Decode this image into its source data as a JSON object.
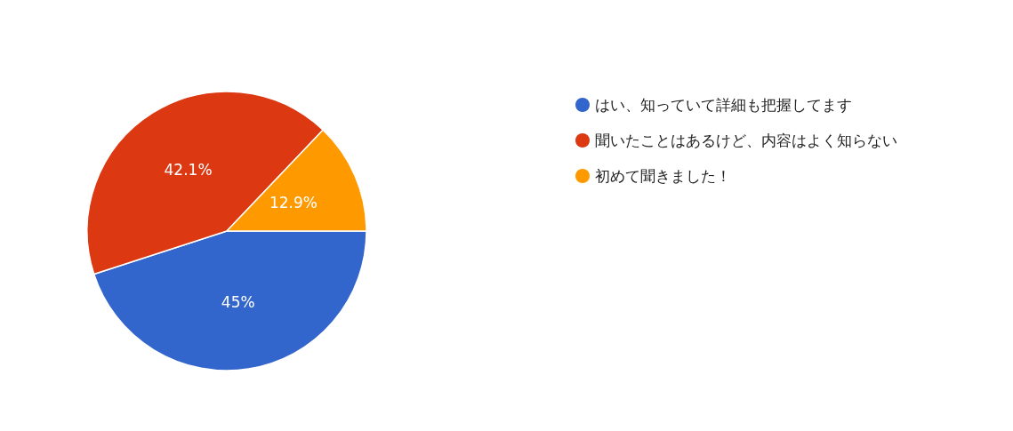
{
  "chart_data": {
    "type": "pie",
    "categories": [
      "はい、知っていて詳細も把握してます",
      "聞いたことはあるけど、内容はよく知らない",
      "初めて聞きました！"
    ],
    "values": [
      45,
      42.1,
      12.9
    ],
    "colors": [
      "#3366cc",
      "#dc3912",
      "#ff9900"
    ],
    "value_labels": [
      "45%",
      "42.1%",
      "12.9%"
    ],
    "legend": "right"
  }
}
